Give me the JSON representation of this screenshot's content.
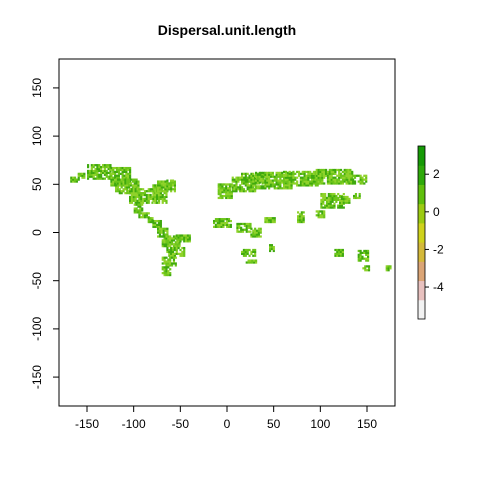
{
  "chart_data": {
    "type": "heatmap",
    "title": "Dispersal.unit.length",
    "xlabel": "",
    "ylabel": "",
    "xlim": [
      -180,
      180
    ],
    "ylim": [
      -180,
      180
    ],
    "x_ticks": [
      -150,
      -100,
      -50,
      0,
      50,
      100,
      150
    ],
    "y_ticks": [
      -150,
      -100,
      -50,
      0,
      50,
      100,
      150
    ],
    "legend": {
      "placement": "right",
      "range": [
        -5.7,
        3.5
      ],
      "ticks": [
        2,
        0,
        -2,
        -4
      ],
      "colors": [
        "#f2f2f2",
        "#e8c1bf",
        "#dba576",
        "#d4b93a",
        "#cfd21c",
        "#9ccb12",
        "#5fbf0c",
        "#2ea90a",
        "#169a06"
      ]
    },
    "raster_color": "#6cc51a",
    "raster_dark": "#3fa90e",
    "raster_light": "#8fd22a",
    "land_blocks": [
      [
        -168,
        52,
        10,
        5
      ],
      [
        -160,
        56,
        8,
        6
      ],
      [
        -150,
        55,
        25,
        15
      ],
      [
        -125,
        48,
        22,
        20
      ],
      [
        -120,
        40,
        25,
        15
      ],
      [
        -105,
        30,
        30,
        15
      ],
      [
        -80,
        30,
        15,
        20
      ],
      [
        -75,
        42,
        20,
        12
      ],
      [
        -65,
        45,
        8,
        10
      ],
      [
        -100,
        20,
        10,
        10
      ],
      [
        -95,
        15,
        12,
        6
      ],
      [
        -85,
        10,
        6,
        5
      ],
      [
        -80,
        5,
        10,
        8
      ],
      [
        -75,
        -5,
        12,
        10
      ],
      [
        -70,
        -15,
        20,
        12
      ],
      [
        -65,
        -25,
        20,
        10
      ],
      [
        -70,
        -35,
        15,
        10
      ],
      [
        -70,
        -45,
        10,
        10
      ],
      [
        -55,
        -10,
        15,
        8
      ],
      [
        -10,
        35,
        15,
        15
      ],
      [
        5,
        42,
        25,
        15
      ],
      [
        15,
        50,
        30,
        12
      ],
      [
        30,
        45,
        40,
        18
      ],
      [
        60,
        48,
        40,
        15
      ],
      [
        95,
        50,
        40,
        15
      ],
      [
        130,
        50,
        20,
        10
      ],
      [
        100,
        25,
        25,
        15
      ],
      [
        -15,
        5,
        20,
        10
      ],
      [
        10,
        0,
        15,
        10
      ],
      [
        25,
        -5,
        12,
        10
      ],
      [
        15,
        -25,
        15,
        8
      ],
      [
        20,
        -32,
        12,
        4
      ],
      [
        40,
        10,
        12,
        5
      ],
      [
        45,
        -20,
        5,
        8
      ],
      [
        75,
        10,
        8,
        12
      ],
      [
        95,
        15,
        10,
        8
      ],
      [
        120,
        30,
        12,
        8
      ],
      [
        135,
        35,
        8,
        5
      ],
      [
        115,
        -25,
        10,
        8
      ],
      [
        140,
        -30,
        12,
        12
      ],
      [
        145,
        -40,
        8,
        5
      ],
      [
        170,
        -40,
        6,
        5
      ]
    ]
  }
}
